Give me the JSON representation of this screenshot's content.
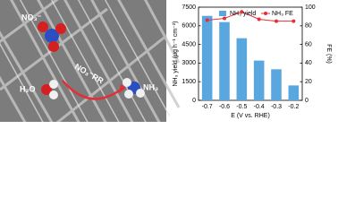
{
  "chart_data": {
    "type": "bar",
    "annotations": [
      "NO₃⁻",
      "NO₃⁻RR",
      "H₂O",
      "NH₃"
    ],
    "xlabel": "E (V vs. RHE)",
    "ylabel": "NH₃ yield (μg h⁻¹ cm⁻²)",
    "y2label": "FE (%)",
    "categories": [
      "-0.7",
      "-0.6",
      "-0.5",
      "-0.4",
      "-0.3",
      "-0.2"
    ],
    "series": [
      {
        "name": "NH₃ yield",
        "color": "#5aa7e0",
        "type": "bar",
        "values": [
          6800,
          6300,
          5000,
          3200,
          2500,
          1200
        ]
      },
      {
        "name": "NH₃ FE",
        "color": "#e0303a",
        "type": "line",
        "axis": "y2",
        "values": [
          86,
          88,
          95,
          87,
          85,
          85
        ]
      }
    ],
    "ylim": [
      0,
      7500
    ],
    "yticks": [
      0,
      1500,
      3000,
      4500,
      6000,
      7500
    ],
    "y2lim": [
      0,
      100
    ],
    "y2ticks": [
      0,
      20,
      40,
      60,
      80,
      100
    ],
    "legend": "top"
  }
}
